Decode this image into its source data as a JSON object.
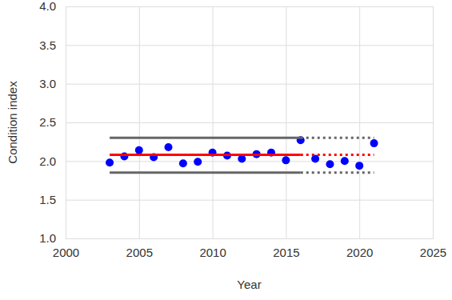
{
  "chart_data": {
    "type": "scatter",
    "x_label": "Year",
    "y_label": "Condition index",
    "xlim": [
      2000,
      2025
    ],
    "xticks": [
      2000,
      2005,
      2010,
      2015,
      2020,
      2025
    ],
    "ylim": [
      1,
      4
    ],
    "yticks": [
      {
        "value": 1,
        "label": "1.0"
      },
      1.5,
      {
        "value": 2,
        "label": "2.0"
      },
      2.5,
      {
        "value": 3,
        "label": "3.0"
      },
      3.5,
      {
        "value": 4,
        "label": "4.0"
      }
    ],
    "grid": true,
    "series": [
      {
        "type": "scatter",
        "marker": "circle",
        "color": "#0000ff",
        "x": [
          2003,
          2004,
          2005,
          2006,
          2007,
          2008,
          2009,
          2010,
          2011,
          2012,
          2013,
          2014,
          2015,
          2016,
          2017,
          2018,
          2019,
          2020,
          2021
        ],
        "values": [
          1.98,
          2.06,
          2.14,
          2.05,
          2.18,
          1.97,
          1.99,
          2.11,
          2.07,
          2.03,
          2.09,
          2.11,
          2.01,
          2.27,
          2.03,
          1.96,
          2.0,
          1.94,
          2.23
        ]
      },
      {
        "type": "line",
        "line_style": "solid",
        "color": "#ff0000",
        "x": [
          2003,
          2016
        ],
        "values": [
          2.08,
          2.08
        ]
      },
      {
        "type": "line",
        "line_style": "dotted",
        "color": "#ff0000",
        "x": [
          2016,
          2021
        ],
        "values": [
          2.08,
          2.08
        ]
      },
      {
        "type": "line",
        "line_style": "solid",
        "color": "#666666",
        "x": [
          2003,
          2016
        ],
        "values": [
          2.3,
          2.3
        ]
      },
      {
        "type": "line",
        "line_style": "dotted",
        "color": "#666666",
        "x": [
          2016,
          2021
        ],
        "values": [
          2.3,
          2.3
        ]
      },
      {
        "type": "line",
        "line_style": "solid",
        "color": "#666666",
        "x": [
          2003,
          2016
        ],
        "values": [
          1.85,
          1.85
        ]
      },
      {
        "type": "line",
        "line_style": "dotted",
        "color": "#666666",
        "x": [
          2016,
          2021
        ],
        "values": [
          1.85,
          1.85
        ]
      }
    ]
  }
}
